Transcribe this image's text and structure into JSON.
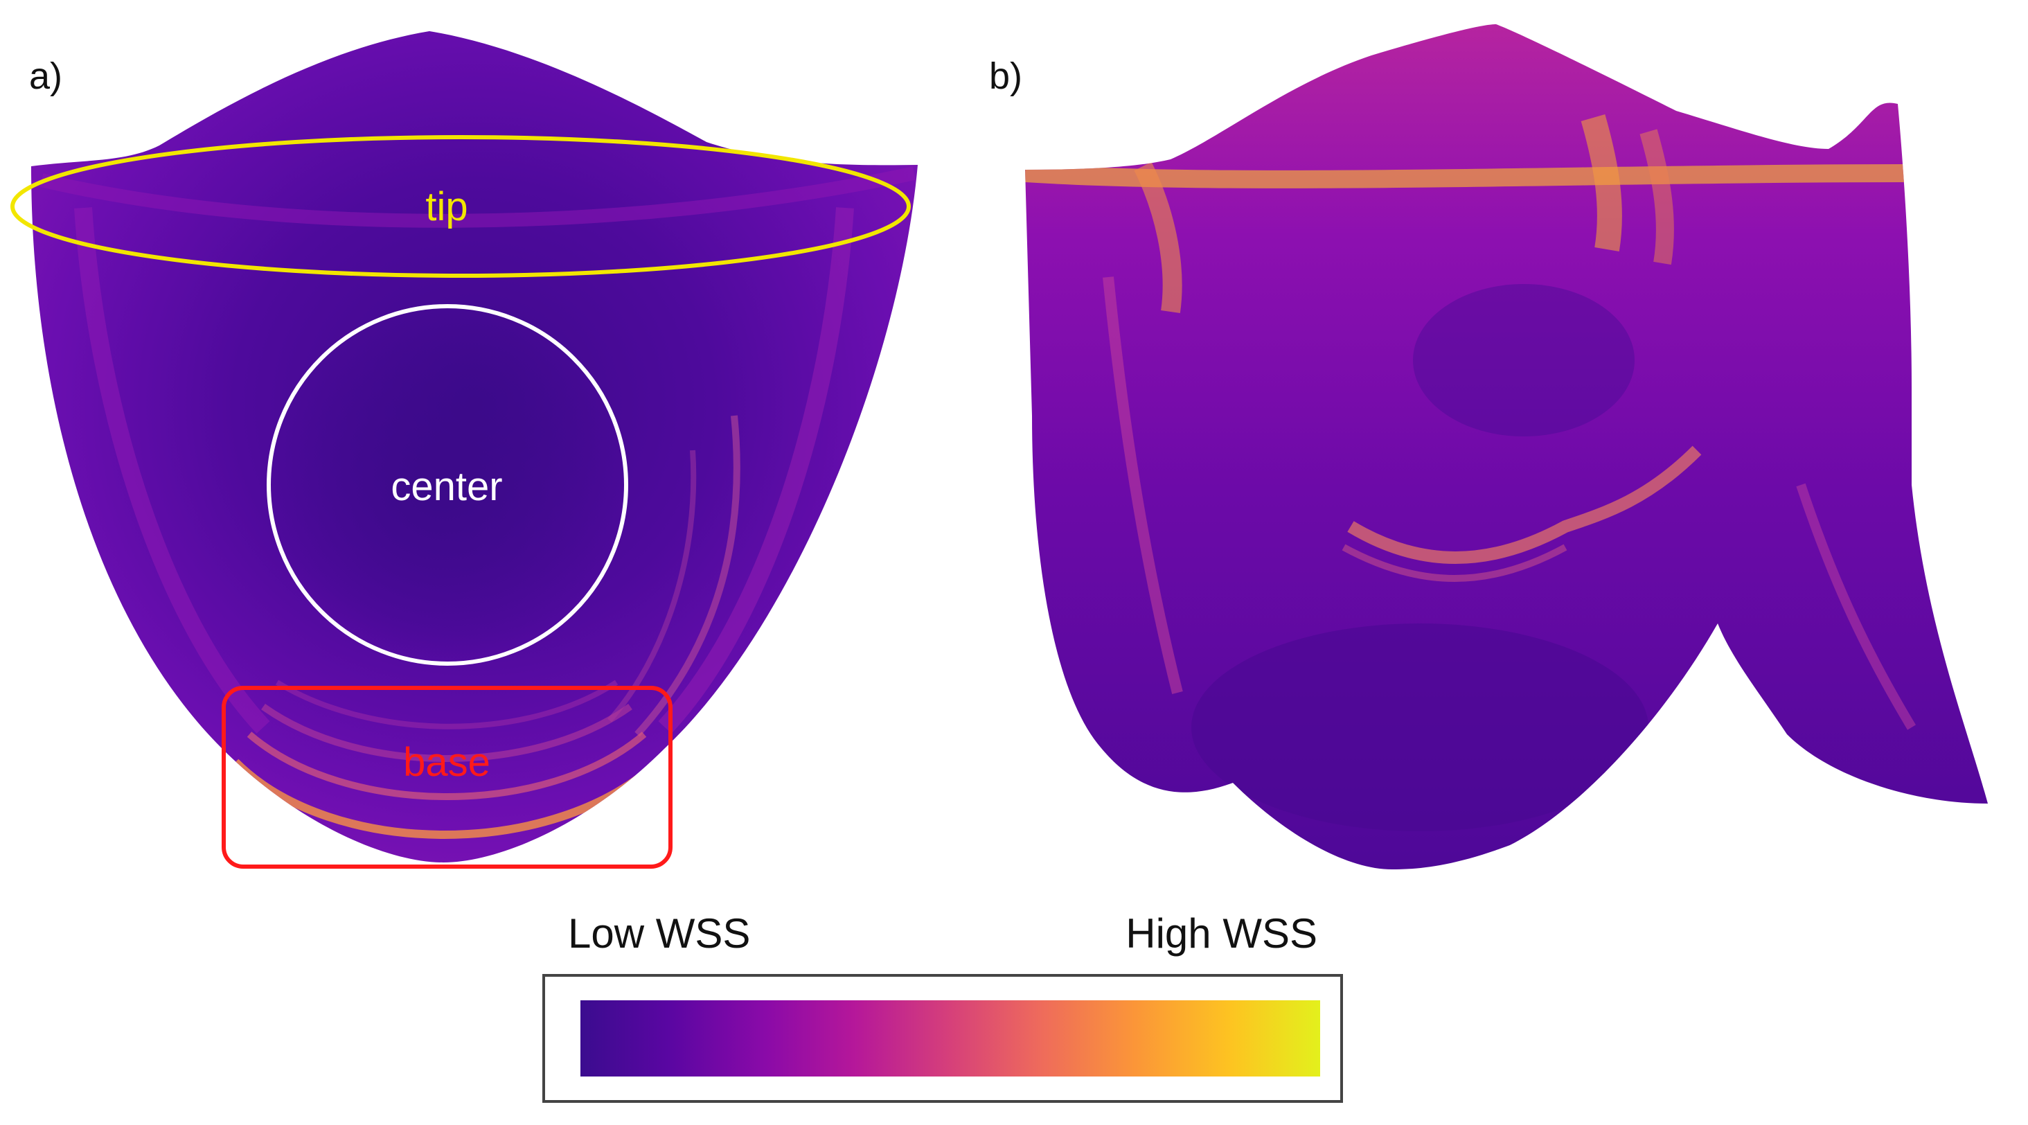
{
  "figure": {
    "panels": [
      {
        "id": "a",
        "label": "a)"
      },
      {
        "id": "b",
        "label": "b)"
      }
    ],
    "regions": [
      {
        "id": "tip",
        "label": "tip",
        "color": "#f2e600"
      },
      {
        "id": "center",
        "label": "center",
        "color": "#ffffff"
      },
      {
        "id": "base",
        "label": "base",
        "color": "#ff1a1a"
      }
    ],
    "colorbar": {
      "low_label": "Low WSS",
      "high_label": "High WSS",
      "colormap": "plasma",
      "stops": [
        "#3b0c8f",
        "#5a06a2",
        "#8a0aa8",
        "#b5179a",
        "#d6407a",
        "#ee6a5c",
        "#fb9638",
        "#fdc421",
        "#e3f01c"
      ]
    }
  }
}
